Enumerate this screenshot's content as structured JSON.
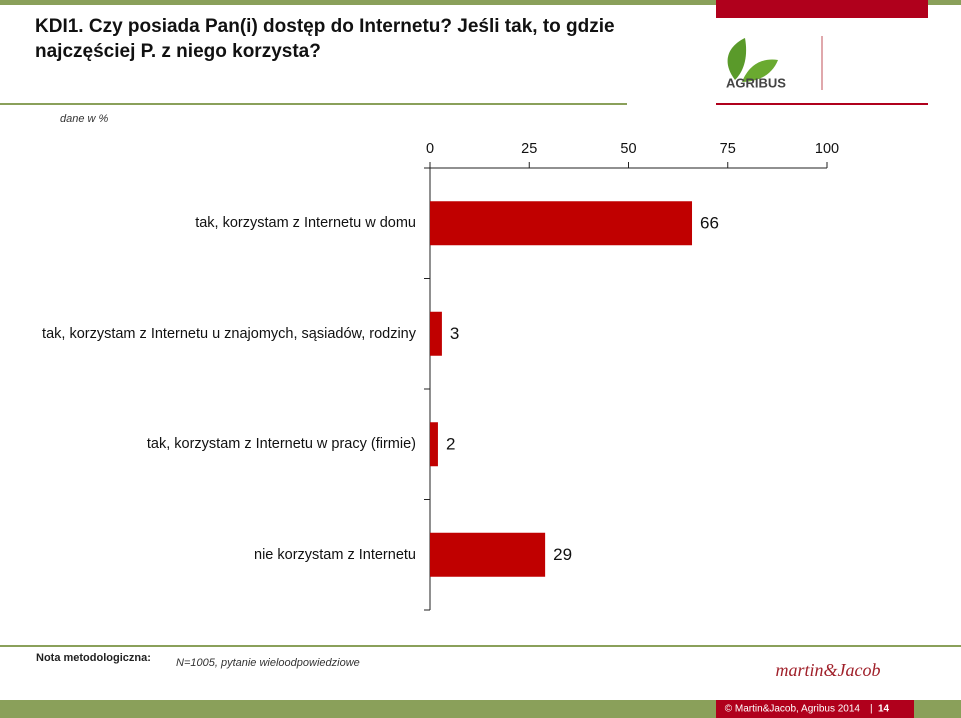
{
  "header": {
    "title": "KDI1.  Czy posiada Pan(i) dostęp do Internetu? Jeśli tak, to gdzie najczęściej P. z niego korzysta?",
    "logo": "AGRIBUS"
  },
  "chart_data": {
    "type": "bar",
    "orientation": "horizontal",
    "subtitle": "dane w %",
    "categories": [
      "tak, korzystam z Internetu w domu",
      "tak, korzystam z Internetu u znajomych, sąsiadów, rodziny",
      "tak, korzystam z Internetu w pracy (firmie)",
      "nie korzystam z Internetu"
    ],
    "values": [
      66,
      3,
      2,
      29
    ],
    "color": "#c00000",
    "xlim": [
      0,
      100
    ],
    "xticks": [
      0,
      25,
      50,
      75,
      100
    ],
    "grid": false
  },
  "footer": {
    "note_label": "Nota metodologiczna:",
    "note": "N=1005, pytanie wieloodpowiedziowe",
    "signature": "martin&Jacob",
    "copyright": "© Martin&Jacob, Agribus 2014",
    "page": "14"
  }
}
